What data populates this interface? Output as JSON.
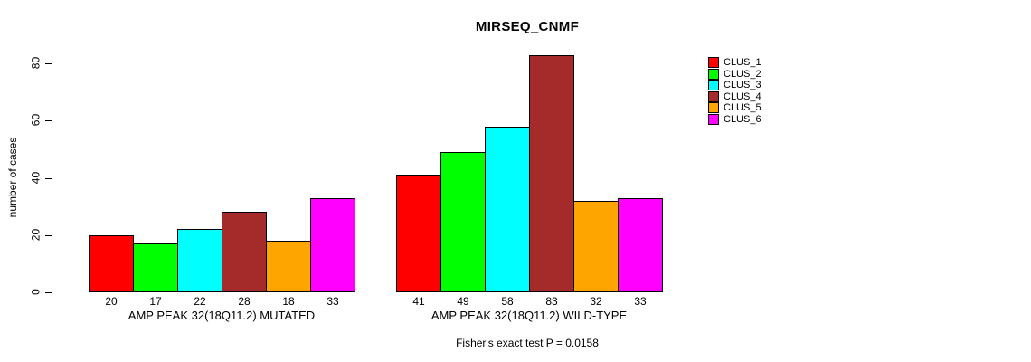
{
  "chart_data": {
    "type": "bar",
    "title": "MIRSEQ_CNMF",
    "ylabel": "number of cases",
    "xlabel": "",
    "ylim": [
      0,
      80
    ],
    "yticks": [
      0,
      20,
      40,
      60,
      80
    ],
    "grid": false,
    "legend_position": "right",
    "series_names": [
      "CLUS_1",
      "CLUS_2",
      "CLUS_3",
      "CLUS_4",
      "CLUS_5",
      "CLUS_6"
    ],
    "series_colors": [
      "#FF0000",
      "#00FF00",
      "#00FFFF",
      "#A52A2A",
      "#FFA500",
      "#FF00FF"
    ],
    "groups": [
      {
        "label": "AMP PEAK 32(18Q11.2) MUTATED",
        "values": [
          20,
          17,
          22,
          28,
          18,
          33
        ]
      },
      {
        "label": "AMP PEAK 32(18Q11.2) WILD-TYPE",
        "values": [
          41,
          49,
          58,
          83,
          32,
          33
        ]
      }
    ],
    "annotation": "Fisher's exact test P = 0.0158"
  },
  "colors": {
    "axis": "#000000",
    "background": "#ffffff",
    "text": "#000000"
  }
}
